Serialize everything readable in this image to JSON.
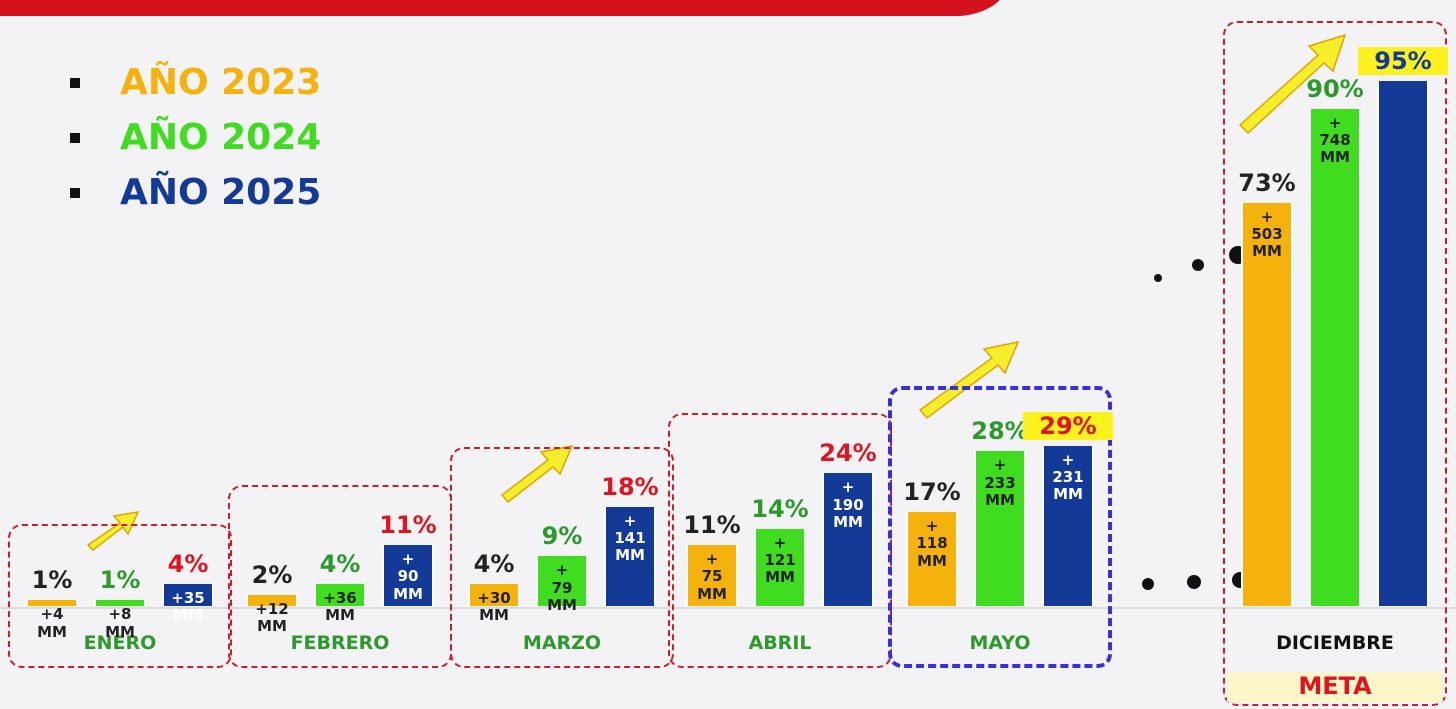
{
  "chart_data": {
    "type": "bar",
    "categories": [
      "ENERO",
      "FEBRERO",
      "MARZO",
      "ABRIL",
      "MAYO",
      "DICIEMBRE"
    ],
    "series": [
      {
        "name": "AÑO 2023",
        "color": "#f5b10c",
        "values": [
          1,
          2,
          4,
          11,
          17,
          73
        ],
        "value_labels": [
          "1%",
          "2%",
          "4%",
          "11%",
          "17%",
          "73%"
        ],
        "amount_labels": [
          "+4 MM",
          "+12 MM",
          "+30 MM",
          "+ 75 MM",
          "+ 118 MM",
          "+ 503 MM"
        ]
      },
      {
        "name": "AÑO 2024",
        "color": "#3fdc1f",
        "values": [
          1,
          4,
          9,
          14,
          28,
          90
        ],
        "value_labels": [
          "1%",
          "4%",
          "9%",
          "14%",
          "28%",
          "90%"
        ],
        "amount_labels": [
          "+8 MM",
          "+36 MM",
          "+ 79 MM",
          "+ 121 MM",
          "+ 233 MM",
          "+ 748 MM"
        ]
      },
      {
        "name": "AÑO 2025",
        "color": "#123a96",
        "values": [
          4,
          11,
          18,
          24,
          29,
          95
        ],
        "value_labels": [
          "4%",
          "11%",
          "18%",
          "24%",
          "29%",
          "95%"
        ],
        "amount_labels": [
          "+35 MM",
          "+ 90 MM",
          "+ 141 MM",
          "+ 190 MM",
          "+ 231 MM",
          null
        ]
      }
    ],
    "annotation": "META"
  }
}
